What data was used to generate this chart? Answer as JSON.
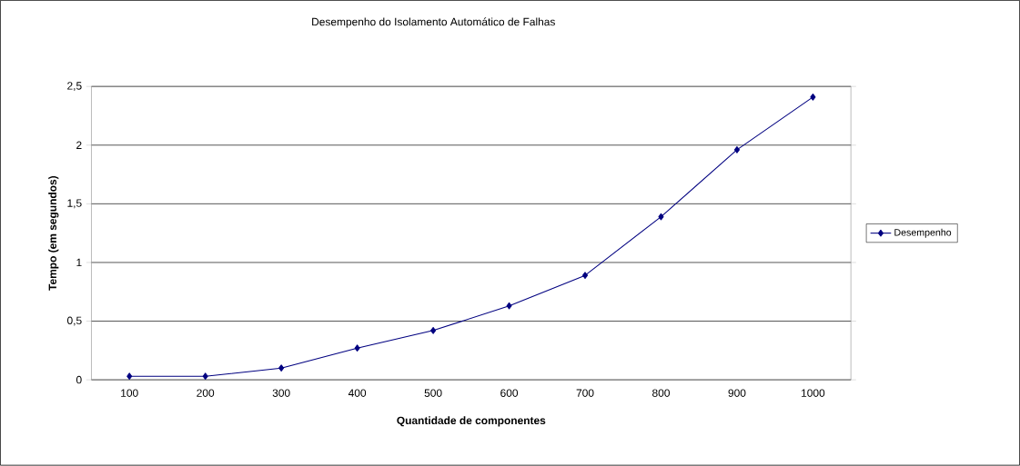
{
  "chart_data": {
    "type": "line",
    "title": "Desempenho do Isolamento Automático de Falhas",
    "xlabel": "Quantidade de componentes",
    "ylabel": "Tempo (em segundos)",
    "categories": [
      "100",
      "200",
      "300",
      "400",
      "500",
      "600",
      "700",
      "800",
      "900",
      "1000"
    ],
    "series": [
      {
        "name": "Desempenho",
        "color": "#000080",
        "values": [
          0.03,
          0.03,
          0.1,
          0.27,
          0.42,
          0.63,
          0.89,
          1.39,
          1.96,
          2.41
        ]
      }
    ],
    "ylim": [
      0,
      2.5
    ],
    "yticks": [
      0,
      {
        "value": 0.5,
        "label": "0,5"
      },
      1,
      {
        "value": 1.5,
        "label": "1,5"
      },
      2,
      {
        "value": 2.5,
        "label": "2,5"
      }
    ],
    "grid": "y",
    "legend": "right",
    "marker": "diamond",
    "line_style": "solid"
  }
}
